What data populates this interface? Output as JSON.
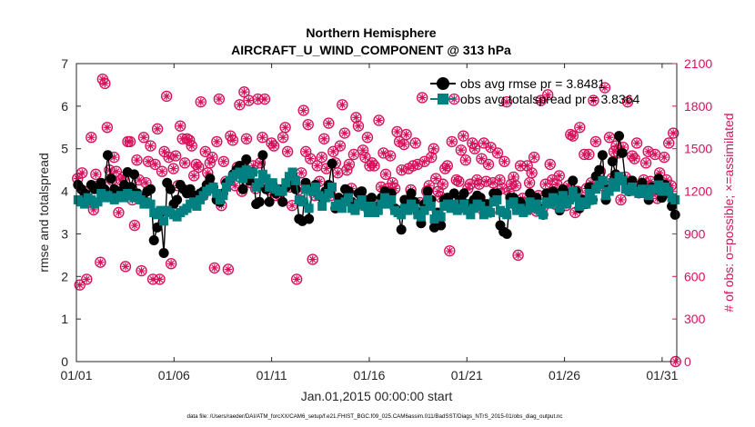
{
  "chart_data": {
    "type": "line",
    "title": "Northern Hemisphere",
    "subtitle": "AIRCRAFT_U_WIND_COMPONENT @ 313 hPa",
    "xlabel": "Jan.01,2015 00:00:00 start",
    "ylabel": "rmse and totalspread",
    "y2label": "# of obs: o=possible; ×=assimilated",
    "footer": "data file: /Users/raeder/DAI/ATM_forcXX/CAM6_setup/f.e21.FHIST_BGC.f09_025.CAM6assim.011/BadSST/Diags_NTrS_2015-01/obs_diag_output.nc",
    "xticks": [
      "01/01",
      "01/06",
      "01/11",
      "01/16",
      "01/21",
      "01/26",
      "01/31"
    ],
    "xtick_days": [
      0,
      5,
      10,
      15,
      20,
      25,
      30
    ],
    "xlim": [
      0,
      30.75
    ],
    "ylim": [
      0,
      7
    ],
    "yticks": [
      "0",
      "1",
      "2",
      "3",
      "4",
      "5",
      "6",
      "7"
    ],
    "y2lim": [
      0,
      2100
    ],
    "y2ticks": [
      "0",
      "300",
      "600",
      "900",
      "1200",
      "1500",
      "1800",
      "2100"
    ],
    "grid": false,
    "legend_position": "top-right",
    "colors": {
      "rmse": "#000000",
      "spread": "#008080",
      "obs": "#d6125c"
    },
    "series": [
      {
        "name": "obs avg rmse pr = 3.8481",
        "axis": "left",
        "marker": "circle",
        "values": [
          4.15,
          4.05,
          3.95,
          3.8,
          4.15,
          4.05,
          4.1,
          4.2,
          4.05,
          4.85,
          4.3,
          4.05,
          4.0,
          3.9,
          4.15,
          4.45,
          4.1,
          4.4,
          3.95,
          3.85,
          3.8,
          4.0,
          4.05,
          2.85,
          3.15,
          3.5,
          2.55,
          4.2,
          4.05,
          3.7,
          3.8,
          4.15,
          4.05,
          3.95,
          4.05,
          3.9,
          3.85,
          3.95,
          4.0,
          4.15,
          4.3,
          4.1,
          3.8,
          3.75,
          3.95,
          4.2,
          4.25,
          4.4,
          4.5,
          4.6,
          4.05,
          4.75,
          4.25,
          4.45,
          3.7,
          3.75,
          4.85,
          4.05,
          3.75,
          4.15,
          3.95,
          4.05,
          3.75,
          4.1,
          4.2,
          4.4,
          4.05,
          3.35,
          3.3,
          4.2,
          3.35,
          4.05,
          4.15,
          3.9,
          3.85,
          4.0,
          4.15,
          4.65,
          3.6,
          3.85,
          3.75,
          4.05,
          4.0,
          3.75,
          3.6,
          3.95,
          4.0,
          3.8,
          3.55,
          3.85,
          3.6,
          3.65,
          3.85,
          4.0,
          3.85,
          3.95,
          3.6,
          3.55,
          3.1,
          3.8,
          3.65,
          3.95,
          3.75,
          3.5,
          3.25,
          3.7,
          4.0,
          3.8,
          3.15,
          3.5,
          3.2,
          3.8,
          3.85,
          3.7,
          3.95,
          3.6,
          3.8,
          3.95,
          3.7,
          3.55,
          3.8,
          3.9,
          3.85,
          3.5,
          3.7,
          3.5,
          3.95,
          3.95,
          3.2,
          3.05,
          3.0,
          3.85,
          3.85,
          3.6,
          3.75,
          3.6,
          3.65,
          3.95,
          3.75,
          3.85,
          3.6,
          3.45,
          3.95,
          3.85,
          4.0,
          3.9,
          3.55,
          4.05,
          3.75,
          3.95,
          4.25,
          4.0,
          3.6,
          3.8,
          3.7,
          4.1,
          3.8,
          4.35,
          4.5,
          4.85,
          3.8,
          4.05,
          4.7,
          4.4,
          5.3,
          4.9,
          4.2,
          4.0,
          4.25,
          4.05,
          3.95,
          4.2,
          3.95,
          3.8,
          4.1,
          4.05,
          4.3,
          3.85,
          4.15,
          3.95,
          3.65,
          3.45
        ]
      },
      {
        "name": "obs avg totalspread pr = 3.8364",
        "axis": "left",
        "marker": "square",
        "values": [
          3.8,
          3.75,
          3.7,
          3.85,
          3.8,
          3.7,
          3.75,
          3.95,
          3.85,
          3.9,
          3.85,
          3.8,
          3.85,
          3.9,
          3.85,
          3.95,
          3.9,
          3.85,
          3.9,
          3.8,
          3.7,
          3.75,
          3.7,
          3.5,
          3.45,
          3.55,
          3.3,
          3.55,
          3.5,
          3.45,
          3.4,
          3.5,
          3.55,
          3.6,
          3.7,
          3.75,
          3.65,
          3.8,
          3.9,
          4.0,
          4.05,
          4.1,
          3.95,
          3.8,
          3.9,
          4.1,
          4.25,
          4.35,
          4.4,
          4.45,
          4.3,
          4.5,
          4.4,
          4.45,
          4.1,
          4.2,
          4.4,
          4.3,
          4.1,
          4.2,
          4.05,
          4.0,
          4.0,
          4.2,
          4.35,
          4.45,
          4.25,
          3.8,
          3.75,
          4.05,
          3.6,
          4.0,
          4.1,
          3.9,
          3.65,
          3.85,
          3.95,
          4.1,
          3.65,
          3.7,
          3.6,
          3.75,
          3.85,
          3.6,
          3.55,
          3.7,
          3.8,
          3.65,
          3.5,
          3.65,
          3.5,
          3.55,
          3.7,
          3.85,
          3.7,
          3.8,
          3.55,
          3.5,
          3.45,
          3.6,
          3.55,
          3.7,
          3.6,
          3.45,
          3.4,
          3.55,
          3.8,
          3.65,
          3.35,
          3.45,
          3.4,
          3.65,
          3.7,
          3.6,
          3.7,
          3.55,
          3.6,
          3.7,
          3.55,
          3.45,
          3.6,
          3.7,
          3.65,
          3.45,
          3.55,
          3.5,
          3.75,
          3.8,
          3.55,
          3.5,
          3.45,
          3.7,
          3.75,
          3.55,
          3.6,
          3.5,
          3.55,
          3.75,
          3.6,
          3.7,
          3.55,
          3.45,
          3.75,
          3.7,
          3.85,
          3.8,
          3.6,
          3.9,
          3.7,
          3.8,
          4.0,
          3.85,
          3.65,
          3.75,
          3.7,
          3.95,
          3.8,
          4.05,
          4.15,
          4.25,
          3.9,
          4.0,
          4.2,
          4.1,
          4.35,
          4.25,
          4.05,
          4.0,
          4.1,
          4.0,
          3.95,
          4.05,
          3.95,
          3.9,
          4.05,
          4.05,
          4.15,
          4.0,
          4.1,
          4.0,
          3.85,
          3.8
        ]
      },
      {
        "name": "possible",
        "axis": "right",
        "marker": "circle-open",
        "values": [
          1290,
          540,
          1330,
          1200,
          580,
          1140,
          1580,
          1070,
          1320,
          1240,
          700,
          1990,
          1960,
          1650,
          1350,
          1280,
          1440,
          1340,
          1050,
          1280,
          1300,
          670,
          1550,
          1550,
          1140,
          960,
          1420,
          1280,
          640,
          1580,
          1260,
          1410,
          1520,
          580,
          1390,
          1640,
          580,
          1340,
          1480,
          1870,
          1440,
          690,
          1360,
          1450,
          1240,
          1660,
          1570,
          1400,
          1570,
          1560,
          1520,
          1310,
          1390,
          1370,
          1830,
          1170,
          1480,
          1330,
          1400,
          1440,
          660,
          1550,
          1850,
          1100,
          1410,
          1270,
          650,
          1590,
          1560,
          1240,
          1370,
          1810,
          1200,
          1900,
          1570,
          1840,
          1260,
          1380,
          1220,
          1850,
          1400,
          1580,
          1850,
          1230,
          1210,
          1540,
          1520,
          1170,
          1180,
          1200,
          1580,
          1650,
          1480,
          1230,
          1100,
          1270,
          580,
          1210,
          1330,
          1770,
          1480,
          1670,
          1430,
          720,
          1170,
          1380,
          1270,
          1440,
          1570,
          1360,
          1680,
          1170,
          1480,
          1400,
          1330,
          1520,
          1810,
          1610,
          1350,
          1390,
          1220,
          1460,
          1720,
          1660,
          1190,
          1490,
          1440,
          1580,
          1380,
          1400,
          1380,
          1100,
          1700,
          1230,
          1470,
          1320,
          1220,
          1450,
          1260,
          1220,
          1620,
          1550,
          1350,
          1530,
          1600,
          1360,
          1210,
          1380,
          1540,
          1390,
          1120,
          1860,
          1410,
          1200,
          1240,
          1440,
          1500,
          1290,
          1200,
          1160,
          1250,
          1360,
          1380,
          780,
          1550,
          1850,
          1280,
          1270,
          1490,
          1590,
          1420,
          1220,
          1250,
          1540,
          1500,
          1280,
          1250,
          1430,
          1540,
          1270,
          1390,
          1510,
          1260,
          1180,
          1470,
          1280,
          1220,
          1410,
          1830,
          1200,
          1250,
          1300,
          1240,
          750,
          1380,
          1150,
          1120,
          1380,
          1260,
          1330,
          1440,
          1060,
          1170,
          1840,
          1090,
          1250,
          1880,
          1390,
          1280,
          1110,
          1250,
          1310,
          1150,
          1170,
          1100,
          1240,
          1600,
          1590,
          1050,
          1200,
          1650,
          1140,
          1460,
          1220,
          1460,
          1260,
          1840,
          1550,
          1260,
          1340,
          1240,
          1930,
          1230,
          1580,
          1290,
          1480,
          1520,
          1470,
          1140,
          1510,
          1300,
          1830,
          1270,
          1450,
          1430,
          1540,
          1230,
          1230,
          1280,
          1400,
          1480,
          1270,
          1200,
          1460,
          1150,
          1330,
          1250,
          1440,
          1280,
          1540,
          1240,
          1610,
          0
        ]
      }
    ]
  }
}
